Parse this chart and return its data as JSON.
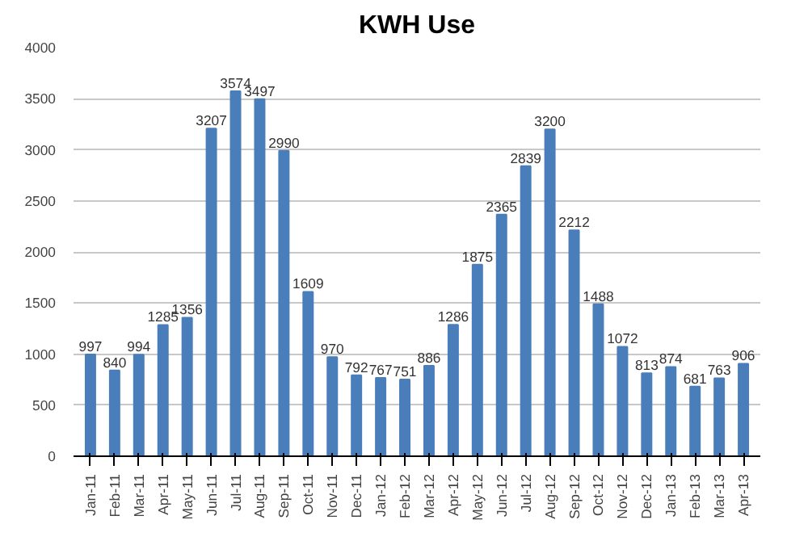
{
  "chart_data": {
    "type": "bar",
    "title": "KWH Use",
    "categories": [
      "Jan-11",
      "Feb-11",
      "Mar-11",
      "Apr-11",
      "May-11",
      "Jun-11",
      "Jul-11",
      "Aug-11",
      "Sep-11",
      "Oct-11",
      "Nov-11",
      "Dec-11",
      "Jan-12",
      "Feb-12",
      "Mar-12",
      "Apr-12",
      "May-12",
      "Jun-12",
      "Jul-12",
      "Aug-12",
      "Sep-12",
      "Oct-12",
      "Nov-12",
      "Dec-12",
      "Jan-13",
      "Feb-13",
      "Mar-13",
      "Apr-13"
    ],
    "values": [
      997,
      840,
      994,
      1285,
      1356,
      3207,
      3574,
      3497,
      2990,
      1609,
      970,
      792,
      767,
      751,
      886,
      1286,
      1875,
      2365,
      2839,
      3200,
      2212,
      1488,
      1072,
      813,
      874,
      681,
      763,
      906
    ],
    "color": "#4a7ebb",
    "ylim": [
      0,
      4000
    ],
    "yticks": [
      0,
      500,
      1000,
      1500,
      2000,
      2500,
      3000,
      3500,
      4000
    ],
    "grid": "y",
    "data_labels": true
  }
}
